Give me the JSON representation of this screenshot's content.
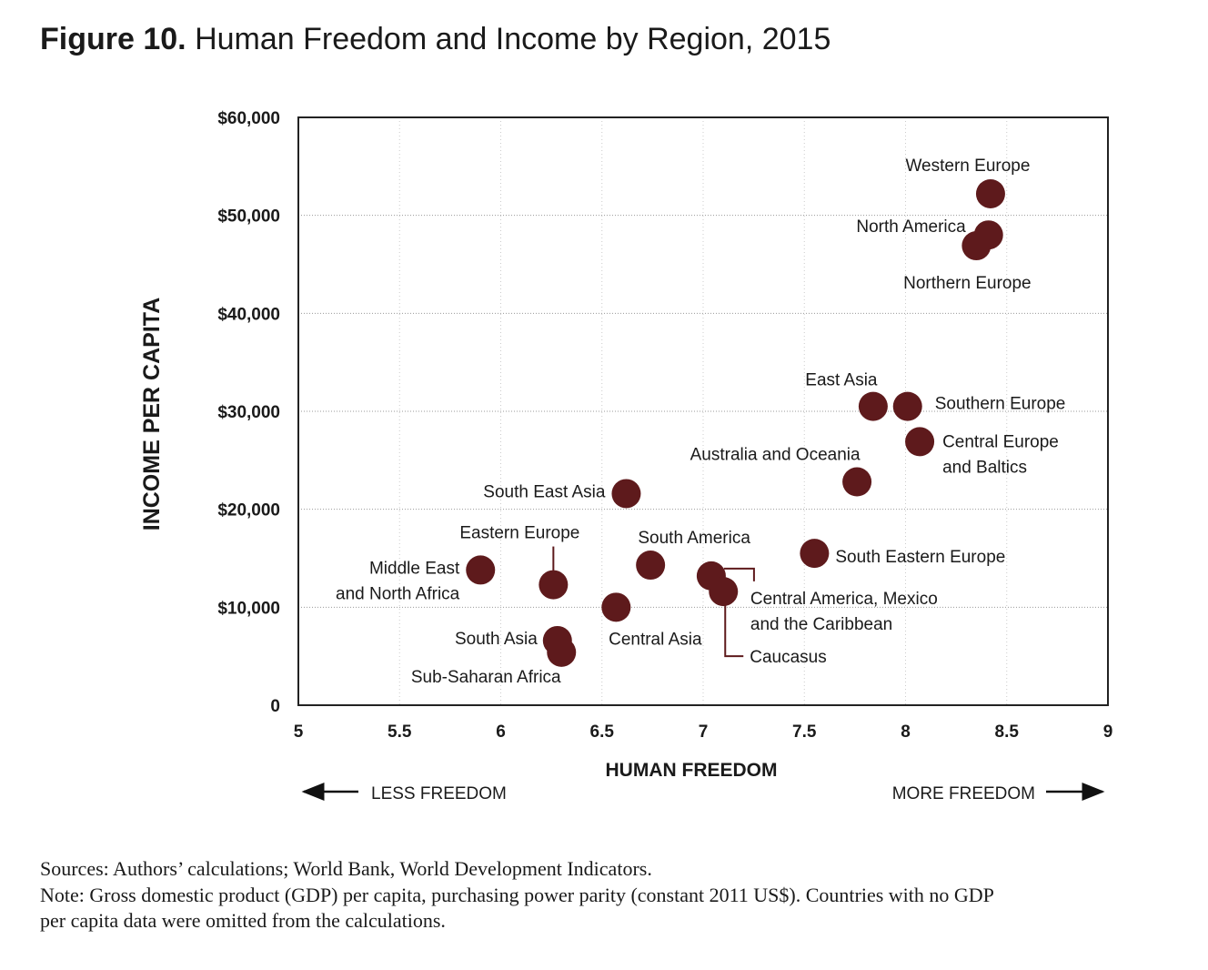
{
  "chart_data": {
    "type": "scatter",
    "title_prefix": "Figure 10.",
    "title": "Human Freedom and Income by Region, 2015",
    "x_label": "HUMAN FREEDOM",
    "y_label": "INCOME PER CAPITA",
    "annotations": [
      "LESS FREEDOM",
      "MORE FREEDOM"
    ],
    "color": "#5e1a1c",
    "grid": true,
    "xlim": [
      5,
      9
    ],
    "xticks": [
      5,
      5.5,
      6,
      6.5,
      7,
      7.5,
      8,
      8.5,
      9
    ],
    "ylim": [
      0,
      60000
    ],
    "yticks": [
      0,
      {
        "value": 10000,
        "label": "$10,000"
      },
      {
        "value": 20000,
        "label": "$20,000"
      },
      {
        "value": 30000,
        "label": "$30,000"
      },
      {
        "value": 40000,
        "label": "$40,000"
      },
      {
        "value": 50000,
        "label": "$50,000"
      },
      {
        "value": 60000,
        "label": "$60,000"
      }
    ],
    "labels": [
      [
        "Western Europe"
      ],
      [
        "North America"
      ],
      [
        "Northern Europe"
      ],
      [
        "East Asia"
      ],
      [
        "Southern Europe"
      ],
      [
        "Central Europe",
        "and Baltics"
      ],
      [
        "Australia and Oceania"
      ],
      [
        "South East Asia"
      ],
      [
        "South Eastern Europe"
      ],
      [
        "South America"
      ],
      [
        "Middle East",
        "and North Africa"
      ],
      [
        "Eastern Europe"
      ],
      [
        "Central America, Mexico",
        "and the Caribbean"
      ],
      [
        "Caucasus"
      ],
      [
        "Central Asia"
      ],
      [
        "South Asia"
      ],
      [
        "Sub-Saharan Africa"
      ]
    ],
    "x": [
      8.42,
      8.41,
      8.35,
      7.84,
      8.01,
      8.07,
      7.76,
      6.62,
      7.55,
      6.74,
      5.9,
      6.26,
      7.04,
      7.1,
      6.57,
      6.28,
      6.3
    ],
    "values": [
      52200,
      48000,
      46900,
      30500,
      30500,
      26900,
      22800,
      21600,
      15500,
      14300,
      13800,
      12300,
      13200,
      11600,
      10000,
      6600,
      5400
    ]
  },
  "footer": {
    "sources": "Sources: Authors’ calculations; World Bank, World Development Indicators.",
    "note": [
      "Note: Gross domestic product (GDP) per capita, purchasing power parity (constant 2011 US$). Countries with no GDP",
      "per capita data were omitted from the calculations."
    ]
  }
}
